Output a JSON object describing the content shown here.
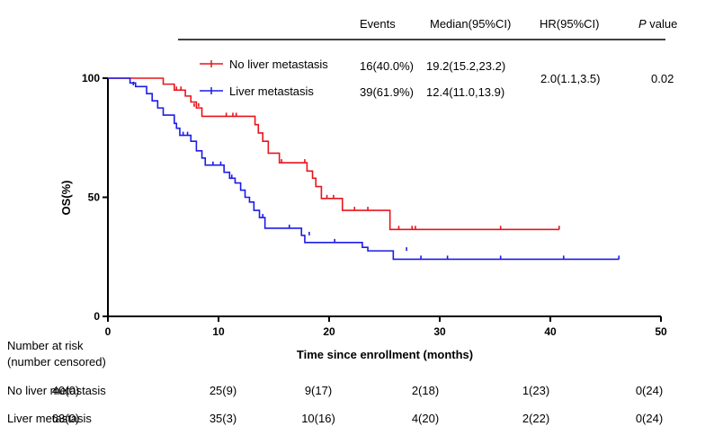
{
  "chart_data": {
    "type": "line",
    "title": "",
    "xlabel": "Time since enrollment (months)",
    "ylabel": "OS(%)",
    "xlim": [
      0,
      50
    ],
    "ylim": [
      0,
      100
    ],
    "x_ticks": [
      0,
      10,
      20,
      30,
      40,
      50
    ],
    "y_ticks": [
      0,
      50,
      100
    ],
    "grid": false,
    "legend_position": "top-left",
    "table_headers": {
      "events": "Events",
      "median": "Median(95%CI)",
      "hr": "HR(95%CI)",
      "p_italic": "P",
      "p_rest": " value"
    },
    "hr_value": "2.0(1.1,3.5)",
    "p_value": "0.02",
    "series": [
      {
        "name": "No liver metastasis",
        "color": "#e8141c",
        "events": "16(40.0%)",
        "median": "19.2(15.2,23.2)",
        "steps": [
          [
            0,
            100
          ],
          [
            5.0,
            97.5
          ],
          [
            6.0,
            95.0
          ],
          [
            7.0,
            92.5
          ],
          [
            7.5,
            90.0
          ],
          [
            8.0,
            87.5
          ],
          [
            8.5,
            84.0
          ],
          [
            13.0,
            84.0
          ],
          [
            13.3,
            80.5
          ],
          [
            13.6,
            77.0
          ],
          [
            14.0,
            73.5
          ],
          [
            14.5,
            68.5
          ],
          [
            15.5,
            64.5
          ],
          [
            18.0,
            61.0
          ],
          [
            18.5,
            58.0
          ],
          [
            18.8,
            54.5
          ],
          [
            19.3,
            49.5
          ],
          [
            21.2,
            44.5
          ],
          [
            25.5,
            36.5
          ],
          [
            40.8,
            36.5
          ]
        ],
        "censored": [
          [
            6.2,
            95.0
          ],
          [
            6.6,
            95.0
          ],
          [
            7.8,
            88.0
          ],
          [
            8.2,
            88.0
          ],
          [
            10.7,
            84.0
          ],
          [
            11.3,
            84.0
          ],
          [
            11.6,
            84.0
          ],
          [
            15.7,
            64.5
          ],
          [
            17.8,
            64.5
          ],
          [
            19.8,
            49.5
          ],
          [
            20.4,
            49.5
          ],
          [
            22.3,
            44.5
          ],
          [
            23.5,
            44.5
          ],
          [
            26.3,
            36.5
          ],
          [
            27.5,
            36.5
          ],
          [
            27.8,
            36.5
          ],
          [
            35.5,
            36.5
          ],
          [
            40.8,
            36.5
          ]
        ]
      },
      {
        "name": "Liver metastasis",
        "color": "#1c1ce8",
        "events": "39(61.9%)",
        "median": "12.4(11.0,13.9)",
        "steps": [
          [
            0,
            100
          ],
          [
            2.0,
            98.0
          ],
          [
            2.5,
            96.5
          ],
          [
            3.5,
            93.5
          ],
          [
            4.0,
            90.5
          ],
          [
            4.5,
            87.5
          ],
          [
            5.0,
            84.5
          ],
          [
            6.0,
            81.0
          ],
          [
            6.2,
            79.0
          ],
          [
            6.5,
            76.0
          ],
          [
            7.5,
            73.5
          ],
          [
            8.0,
            69.5
          ],
          [
            8.5,
            66.5
          ],
          [
            8.8,
            63.5
          ],
          [
            10.5,
            60.5
          ],
          [
            11.0,
            58.0
          ],
          [
            11.5,
            56.0
          ],
          [
            12.0,
            53.0
          ],
          [
            12.4,
            50.0
          ],
          [
            12.8,
            48.0
          ],
          [
            13.2,
            44.5
          ],
          [
            13.7,
            41.5
          ],
          [
            14.2,
            37.0
          ],
          [
            17.5,
            34.0
          ],
          [
            17.8,
            31.0
          ],
          [
            23.0,
            29.0
          ],
          [
            23.5,
            27.5
          ],
          [
            25.8,
            24.0
          ],
          [
            46.2,
            24.0
          ]
        ],
        "censored": [
          [
            2.3,
            97.0
          ],
          [
            6.8,
            76.0
          ],
          [
            7.2,
            76.0
          ],
          [
            9.5,
            63.5
          ],
          [
            10.2,
            63.5
          ],
          [
            11.2,
            58.0
          ],
          [
            14.0,
            41.5
          ],
          [
            16.4,
            37.0
          ],
          [
            18.2,
            34.0
          ],
          [
            20.5,
            31.0
          ],
          [
            27.0,
            27.5
          ],
          [
            28.3,
            24.0
          ],
          [
            30.7,
            24.0
          ],
          [
            35.5,
            24.0
          ],
          [
            41.2,
            24.0
          ],
          [
            46.2,
            24.0
          ]
        ]
      }
    ],
    "risk_table": {
      "header": "Number at risk",
      "subheader": "(number censored)",
      "time_points": [
        0,
        10,
        20,
        30,
        40,
        50
      ],
      "rows": [
        {
          "label": "No liver metastasis",
          "values": [
            "40(0)",
            "25(9)",
            "9(17)",
            "2(18)",
            "1(23)",
            "0(24)"
          ]
        },
        {
          "label": "Liver metastasis",
          "values": [
            "63(0)",
            "35(3)",
            "10(16)",
            "4(20)",
            "2(22)",
            "0(24)"
          ]
        }
      ]
    }
  }
}
